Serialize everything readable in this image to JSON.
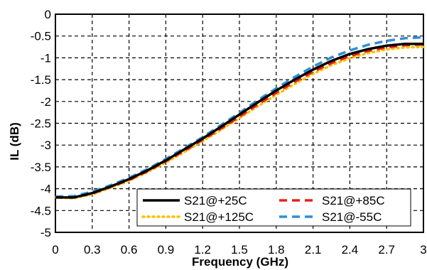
{
  "chart_data": {
    "type": "line",
    "xlabel": "Frequency (GHz)",
    "ylabel": "IL (dB)",
    "xlim": [
      0,
      3
    ],
    "ylim": [
      -5,
      0
    ],
    "xticks": [
      0,
      0.3,
      0.6,
      0.9,
      1.2,
      1.5,
      1.8,
      2.1,
      2.4,
      2.7,
      3
    ],
    "xtick_labels": [
      "0",
      "0.3",
      "0.6",
      "0.9",
      "1.2",
      "1.5",
      "1.8",
      "2.1",
      "2.4",
      "2.7",
      "3"
    ],
    "yticks": [
      0,
      -0.5,
      -1,
      -1.5,
      -2,
      -2.5,
      -3,
      -3.5,
      -4,
      -4.5,
      -5
    ],
    "ytick_labels": [
      "0",
      "-0.5",
      "-1",
      "-1.5",
      "-2",
      "-2.5",
      "-3",
      "-3.5",
      "-4",
      "-4.5",
      "-5"
    ],
    "grid": true,
    "legend_position": "bottom-right",
    "series": [
      {
        "name": "S21@+25C",
        "color": "#000000",
        "style": "solid",
        "x": [
          0,
          0.15,
          0.3,
          0.45,
          0.6,
          0.75,
          0.9,
          1.05,
          1.2,
          1.35,
          1.5,
          1.65,
          1.8,
          1.95,
          2.1,
          2.25,
          2.4,
          2.55,
          2.7,
          2.85,
          3.0
        ],
        "y": [
          -4.2,
          -4.2,
          -4.1,
          -3.95,
          -3.78,
          -3.58,
          -3.35,
          -3.1,
          -2.85,
          -2.58,
          -2.3,
          -2.02,
          -1.75,
          -1.5,
          -1.27,
          -1.07,
          -0.91,
          -0.8,
          -0.72,
          -0.68,
          -0.68
        ]
      },
      {
        "name": "S21@+85C",
        "color": "#e8211b",
        "style": "dashed",
        "x": [
          0,
          0.15,
          0.3,
          0.45,
          0.6,
          0.75,
          0.9,
          1.05,
          1.2,
          1.35,
          1.5,
          1.65,
          1.8,
          1.95,
          2.1,
          2.25,
          2.4,
          2.55,
          2.7,
          2.85,
          3.0
        ],
        "y": [
          -4.2,
          -4.2,
          -4.11,
          -3.96,
          -3.8,
          -3.6,
          -3.37,
          -3.13,
          -2.88,
          -2.62,
          -2.35,
          -2.07,
          -1.8,
          -1.55,
          -1.32,
          -1.12,
          -0.96,
          -0.84,
          -0.76,
          -0.71,
          -0.69
        ]
      },
      {
        "name": "S21@+125C",
        "color": "#ffc000",
        "style": "dotted",
        "x": [
          0,
          0.15,
          0.3,
          0.45,
          0.6,
          0.75,
          0.9,
          1.05,
          1.2,
          1.35,
          1.5,
          1.65,
          1.8,
          1.95,
          2.1,
          2.25,
          2.4,
          2.55,
          2.7,
          2.85,
          3.0
        ],
        "y": [
          -4.2,
          -4.22,
          -4.13,
          -3.98,
          -3.82,
          -3.62,
          -3.4,
          -3.16,
          -2.91,
          -2.65,
          -2.38,
          -2.11,
          -1.85,
          -1.6,
          -1.37,
          -1.17,
          -1.01,
          -0.89,
          -0.81,
          -0.76,
          -0.75
        ]
      },
      {
        "name": "S21@-55C",
        "color": "#2e8fd6",
        "style": "dashed",
        "x": [
          0,
          0.15,
          0.3,
          0.45,
          0.6,
          0.75,
          0.9,
          1.05,
          1.2,
          1.35,
          1.5,
          1.65,
          1.8,
          1.95,
          2.1,
          2.25,
          2.4,
          2.55,
          2.7,
          2.85,
          3.0
        ],
        "y": [
          -4.18,
          -4.17,
          -4.07,
          -3.92,
          -3.75,
          -3.55,
          -3.32,
          -3.07,
          -2.82,
          -2.54,
          -2.26,
          -1.97,
          -1.7,
          -1.44,
          -1.2,
          -0.99,
          -0.83,
          -0.7,
          -0.61,
          -0.55,
          -0.53
        ]
      }
    ]
  }
}
